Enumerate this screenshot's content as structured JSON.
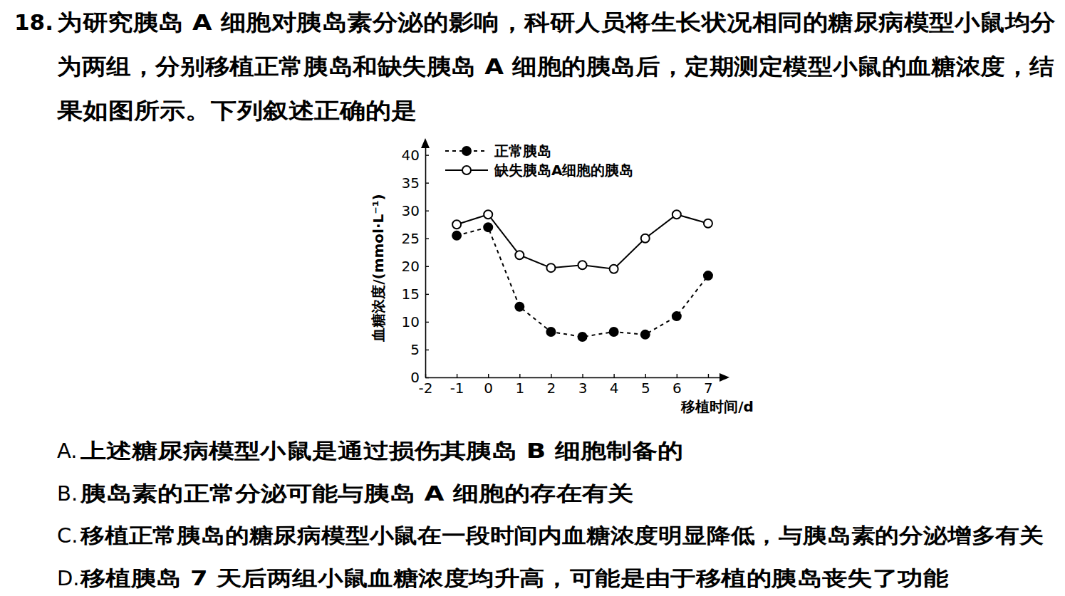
{
  "question": {
    "number": "18.",
    "lines": [
      "为研究胰岛 A 细胞对胰岛素分泌的影响，科研人员将生长状况相同的糖尿病模型小鼠均分",
      "为两组，分别移植正常胰岛和缺失胰岛 A 细胞的胰岛后，定期测定模型小鼠的血糖浓度，结",
      "果如图所示。下列叙述正确的是"
    ]
  },
  "chart_data": {
    "type": "line",
    "x_label": "移植时间/d",
    "y_label": "血糖浓度/(mmol·L⁻¹)",
    "x": [
      -1,
      0,
      1,
      2,
      3,
      4,
      5,
      6,
      7
    ],
    "xlim": [
      -2,
      7.5
    ],
    "xticks": [
      -2,
      -1,
      0,
      1,
      2,
      3,
      4,
      5,
      6,
      7
    ],
    "ylim": [
      0,
      42
    ],
    "yticks": [
      0,
      5,
      10,
      15,
      20,
      25,
      30,
      35,
      40
    ],
    "legend": "top",
    "grid": false,
    "series": [
      {
        "name": "正常胰岛",
        "color": "#000000",
        "marker": "filled",
        "line_style": "dashed",
        "values": [
          25.5,
          27,
          12.7,
          8.2,
          7.3,
          8.2,
          7.7,
          11,
          18.3
        ]
      },
      {
        "name": "缺失胰岛A细胞的胰岛",
        "color": "#000000",
        "marker": "open",
        "line_style": "solid",
        "values": [
          27.5,
          29.3,
          22,
          19.7,
          20.2,
          19.5,
          25,
          29.3,
          27.7
        ]
      }
    ]
  },
  "options": [
    {
      "letter": "A.",
      "text": "上述糖尿病模型小鼠是通过损伤其胰岛 B 细胞制备的"
    },
    {
      "letter": "B.",
      "text": "胰岛素的正常分泌可能与胰岛 A 细胞的存在有关"
    },
    {
      "letter": "C.",
      "text": "移植正常胰岛的糖尿病模型小鼠在一段时间内血糖浓度明显降低，与胰岛素的分泌增多有关"
    },
    {
      "letter": "D.",
      "text": "移植胰岛 7 天后两组小鼠血糖浓度均升高，可能是由于移植的胰岛丧失了功能"
    }
  ]
}
